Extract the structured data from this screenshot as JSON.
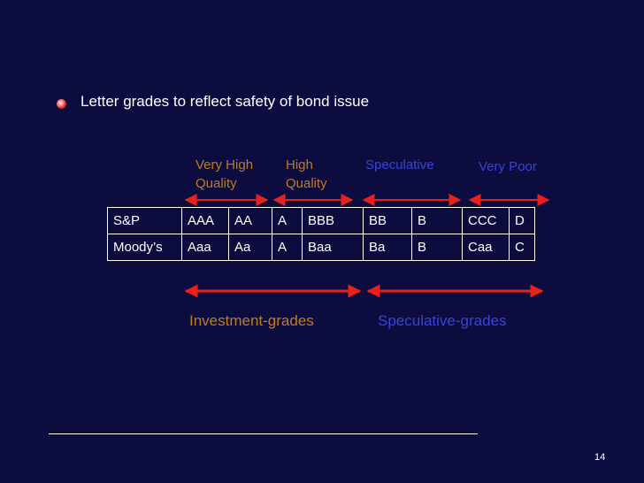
{
  "slide": {
    "bullet": "Letter grades to reflect safety of bond issue",
    "page_number": "14"
  },
  "categories": [
    {
      "label": "Very High\nQuality",
      "color": "#c07b2a"
    },
    {
      "label": "High\nQuality",
      "color": "#c07b2a"
    },
    {
      "label": "Speculative",
      "color": "#3a42d8"
    },
    {
      "label": "Very Poor",
      "color": "#3a42d8"
    }
  ],
  "table": {
    "rows": [
      {
        "agency": "S&P",
        "grades": [
          "AAA",
          "AA",
          "A",
          "BBB",
          "BB",
          "B",
          "CCC",
          "D"
        ]
      },
      {
        "agency": "Moody’s",
        "grades": [
          "Aaa",
          "Aa",
          "A",
          "Baa",
          "Ba",
          "B",
          "Caa",
          "C"
        ]
      }
    ]
  },
  "groups": [
    {
      "label": "Investment-grades",
      "color": "#c07b2a"
    },
    {
      "label": "Speculative-grades",
      "color": "#3a42d8"
    }
  ],
  "colors": {
    "background": "#0c0c3e",
    "arrow": "#e8211d",
    "investment": "#c07b2a",
    "speculative": "#3a42d8",
    "text": "#ffffff"
  }
}
